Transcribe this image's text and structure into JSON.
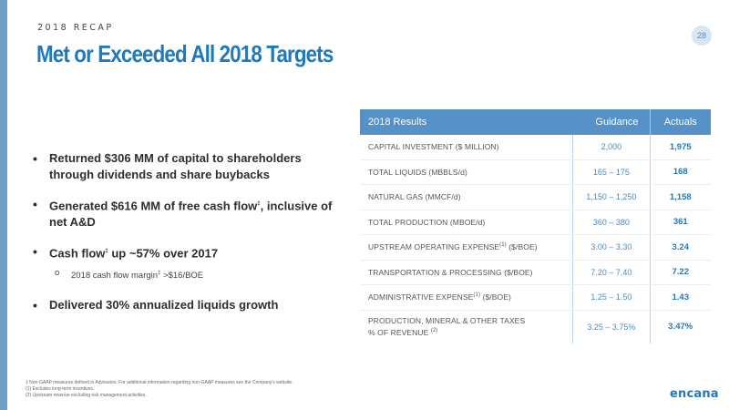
{
  "header": {
    "kicker": "2018 RECAP",
    "title": "Met or Exceeded All 2018 Targets",
    "page_number": "28"
  },
  "bullets": [
    {
      "text": "Returned $306 MM of capital to shareholders through dividends and share buybacks"
    },
    {
      "text_parts": [
        "Generated $616 MM of free cash flow",
        "‡",
        ", inclusive of net A&D"
      ]
    },
    {
      "text_parts": [
        "Cash flow",
        "‡",
        " up ~57% over 2017"
      ],
      "sub_parts": [
        "2018 cash flow margin",
        "‡",
        " >$16/BOE"
      ]
    },
    {
      "text": "Delivered 30% annualized liquids growth"
    }
  ],
  "table": {
    "headers": [
      "2018 Results",
      "Guidance",
      "Actuals"
    ],
    "rows": [
      {
        "label": "CAPITAL INVESTMENT ($ MILLION)",
        "guidance": "2,000",
        "actual": "1,975"
      },
      {
        "label": "TOTAL LIQUIDS (MBBLS/d)",
        "guidance": "165 – 175",
        "actual": "168"
      },
      {
        "label": "NATURAL GAS (MMCF/d)",
        "guidance": "1,150 – 1,250",
        "actual": "1,158"
      },
      {
        "label": "TOTAL PRODUCTION (MBOE/d)",
        "guidance": "360 – 380",
        "actual": "361"
      },
      {
        "label_parts": [
          "UPSTREAM OPERATING EXPENSE",
          "(1)",
          " ($/BOE)"
        ],
        "guidance": "3.00 – 3.30",
        "actual": "3.24"
      },
      {
        "label": "TRANSPORTATION & PROCESSING ($/BOE)",
        "guidance": "7.20 – 7.40",
        "actual": "7.22"
      },
      {
        "label_parts": [
          "ADMINISTRATIVE EXPENSE",
          "(1)",
          " ($/BOE)"
        ],
        "guidance": "1.25 – 1.50",
        "actual": "1.43"
      },
      {
        "label_line1": "PRODUCTION, MINERAL & OTHER TAXES",
        "label_line2_parts": [
          "% OF REVENUE ",
          "(2)"
        ],
        "guidance": "3.25 – 3.75%",
        "actual": "3.47%"
      }
    ]
  },
  "footnotes": [
    "‡ Non-GAAP measures defined in Advisories. For additional information regarding non-GAAP measures see the Company's website.",
    "(1) Excludes long-term incentives.",
    "(2) Upstream revenue excluding risk management activities."
  ],
  "logo": "encana",
  "colors": {
    "brand_blue": "#1f79bd",
    "header_blue": "#5691c8",
    "left_bar": "#6f9fc9"
  }
}
